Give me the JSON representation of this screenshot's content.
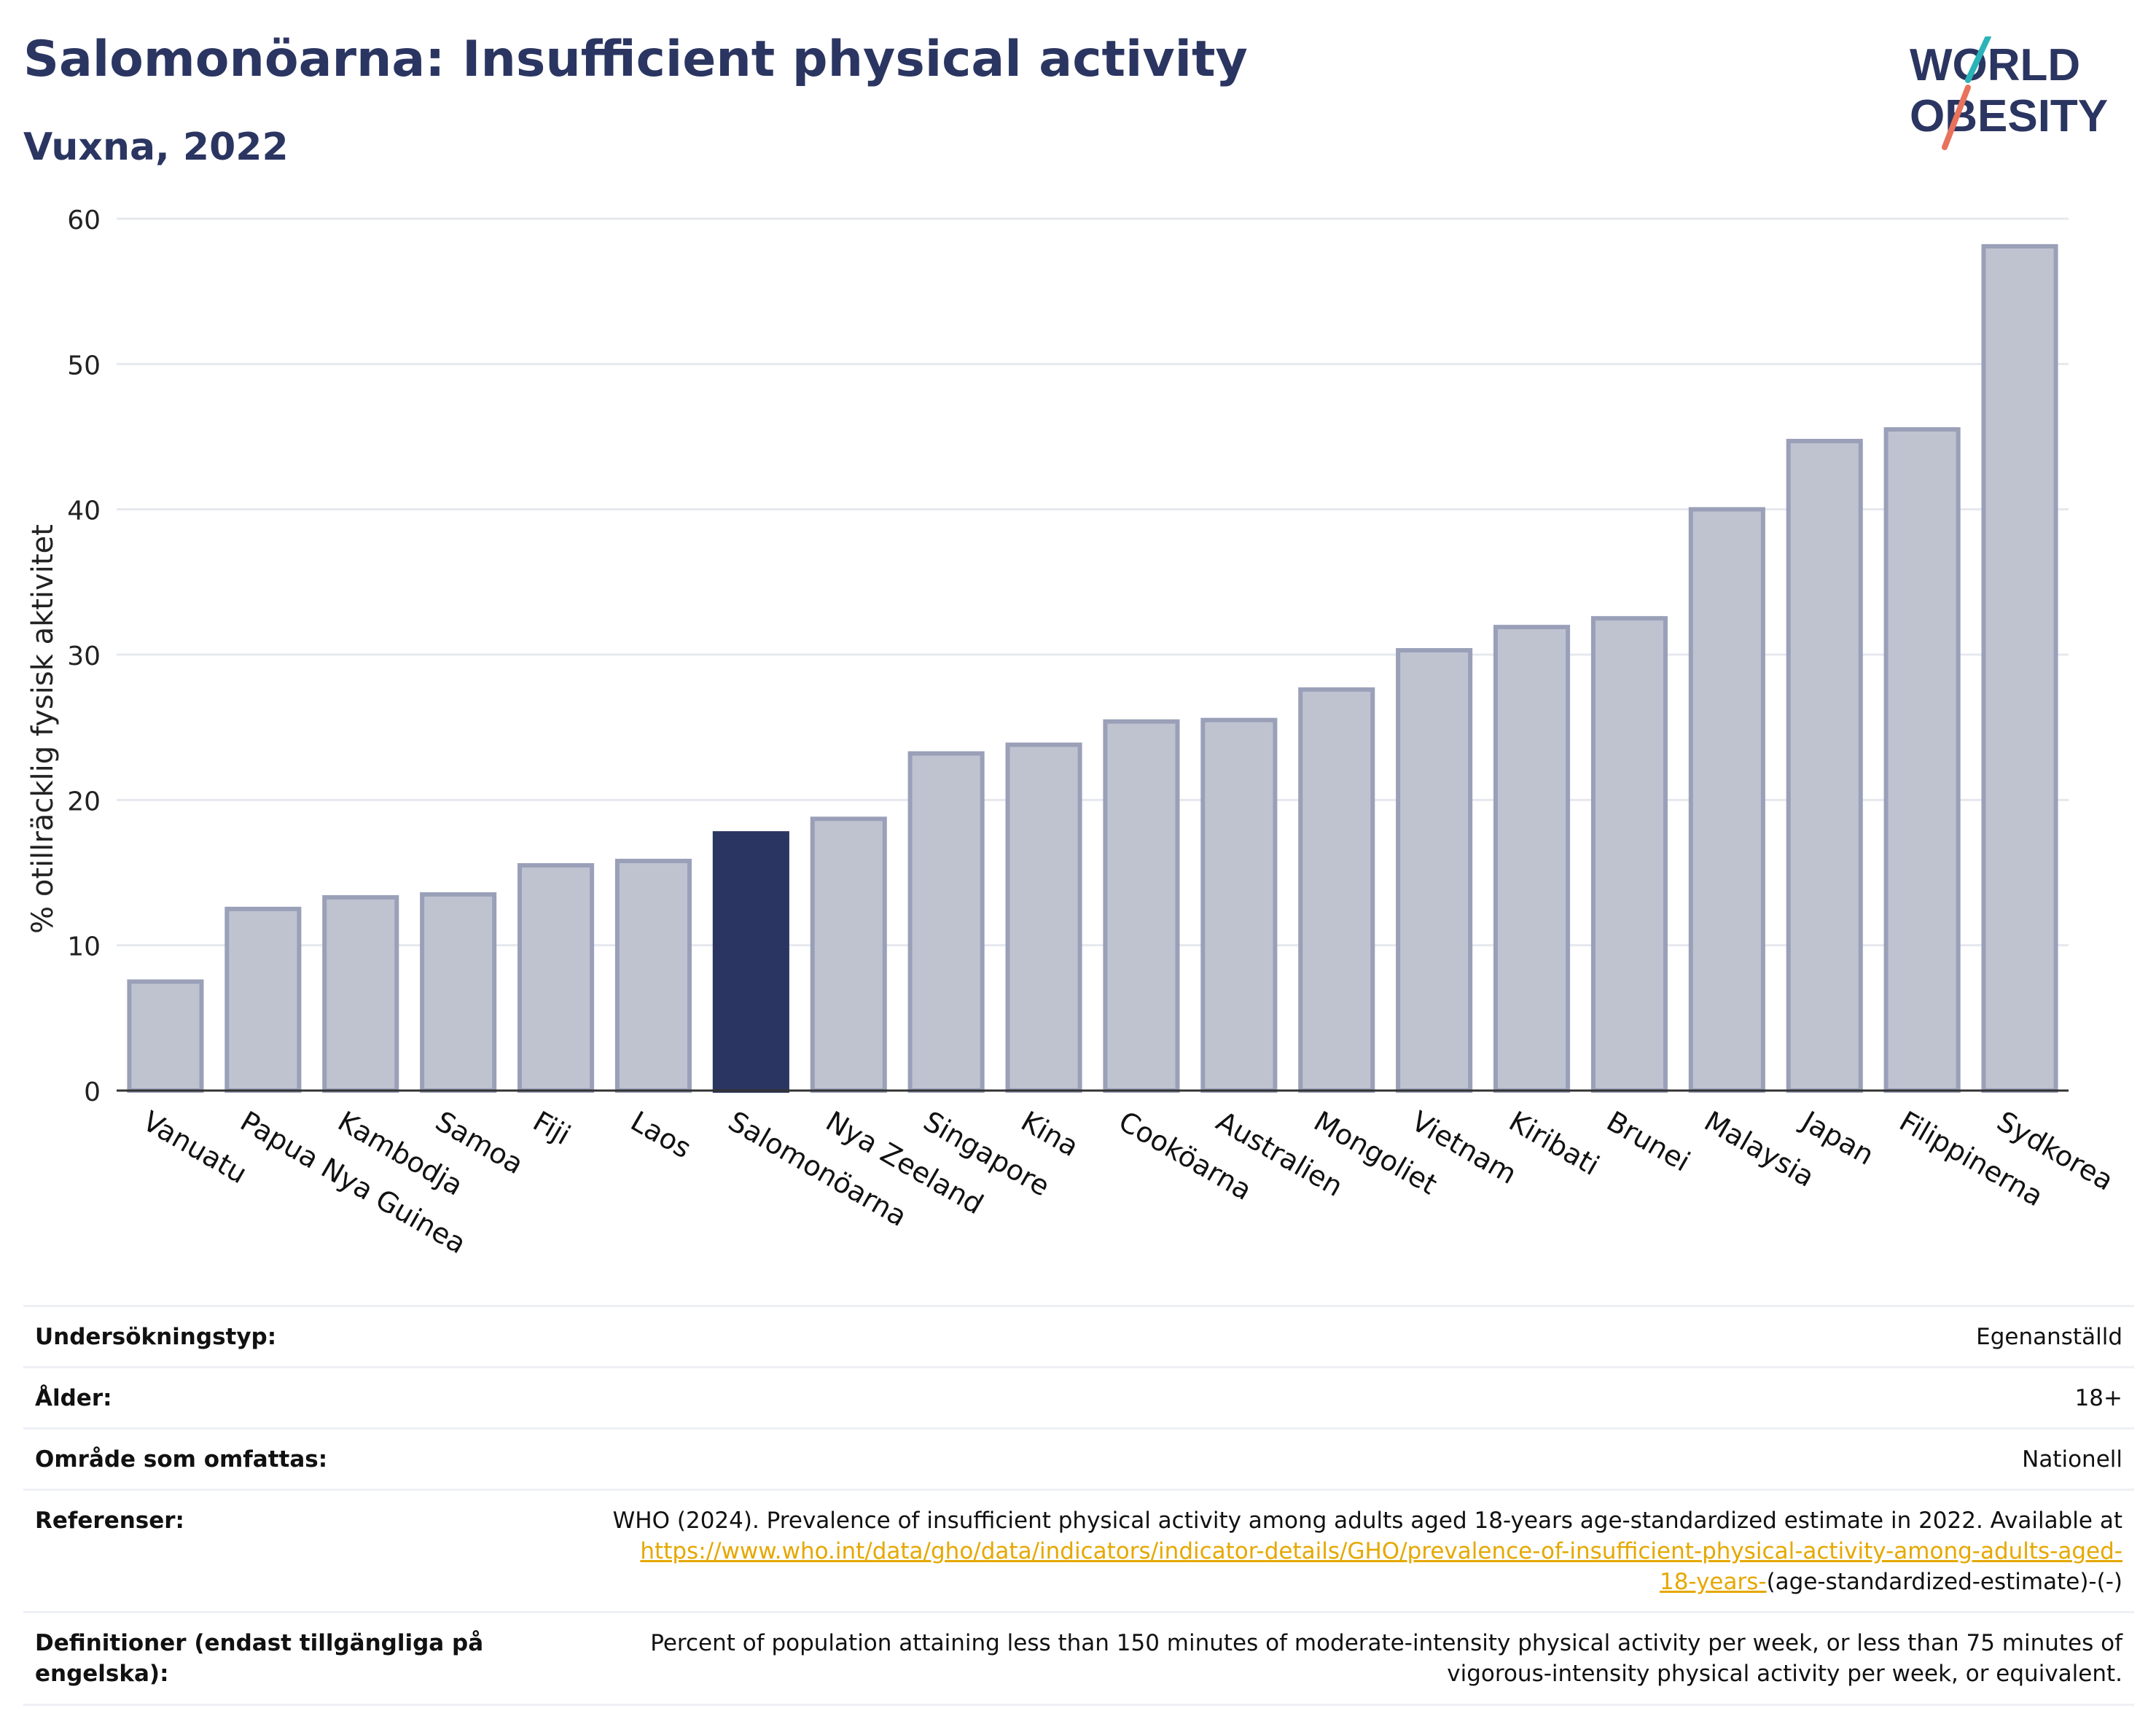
{
  "header": {
    "title": "Salomonöarna: Insufficient physical activity",
    "subtitle": "Vuxna, 2022",
    "logo_line1": "WORLD",
    "logo_line2": "OBESITY"
  },
  "colors": {
    "highlight": "#2b3561",
    "bar": "#bfc3d0",
    "bar_border": "#9aa0b8",
    "title": "#2b3561",
    "link": "#e5a800",
    "logo_slash_teal": "#2ab3b8",
    "logo_slash_coral": "#e8725c"
  },
  "chart_data": {
    "type": "bar",
    "ylabel": "% otillräcklig fysisk aktivitet",
    "ylim": [
      0,
      60
    ],
    "yticks": [
      0,
      10,
      20,
      30,
      40,
      50,
      60
    ],
    "grid": true,
    "highlight": "Salomonöarna",
    "categories": [
      "Vanuatu",
      "Papua Nya Guinea",
      "Kambodja",
      "Samoa",
      "Fiji",
      "Laos",
      "Salomonöarna",
      "Nya Zeeland",
      "Singapore",
      "Kina",
      "Cooköarna",
      "Australien",
      "Mongoliet",
      "Vietnam",
      "Kiribati",
      "Brunei",
      "Malaysia",
      "Japan",
      "Filippinerna",
      "Sydkorea"
    ],
    "values": [
      7.5,
      12.5,
      13.3,
      13.5,
      15.5,
      15.8,
      17.7,
      18.7,
      23.2,
      23.8,
      25.4,
      25.5,
      27.6,
      30.3,
      31.9,
      32.5,
      40.0,
      44.7,
      45.5,
      58.1
    ]
  },
  "meta": {
    "survey_type_label": "Undersökningstyp:",
    "survey_type_value": "Egenanställd",
    "age_label": "Ålder:",
    "age_value": "18+",
    "coverage_label": "Område som omfattas:",
    "coverage_value": "Nationell",
    "references_label": "Referenser:",
    "references_text": "WHO (2024). Prevalence of insufficient physical activity among adults aged 18-years age-standardized estimate in 2022. Available at",
    "references_link_1": "https://www.who.int/data/gho/data/indicators/indicator-details/GHO/prevalence-of-insufficient-physical-activity-among-adults-aged-",
    "references_link_2": "18-years-",
    "references_tail": "(age-standardized-estimate)-(-)",
    "definitions_label": "Definitioner (endast tillgängliga på engelska):",
    "definitions_line_1": "Percent of population attaining less than 150 minutes of moderate-intensity physical activity per week, or less than 75 minutes of",
    "definitions_line_2": "vigorous-intensity physical activity per week, or equivalent."
  }
}
